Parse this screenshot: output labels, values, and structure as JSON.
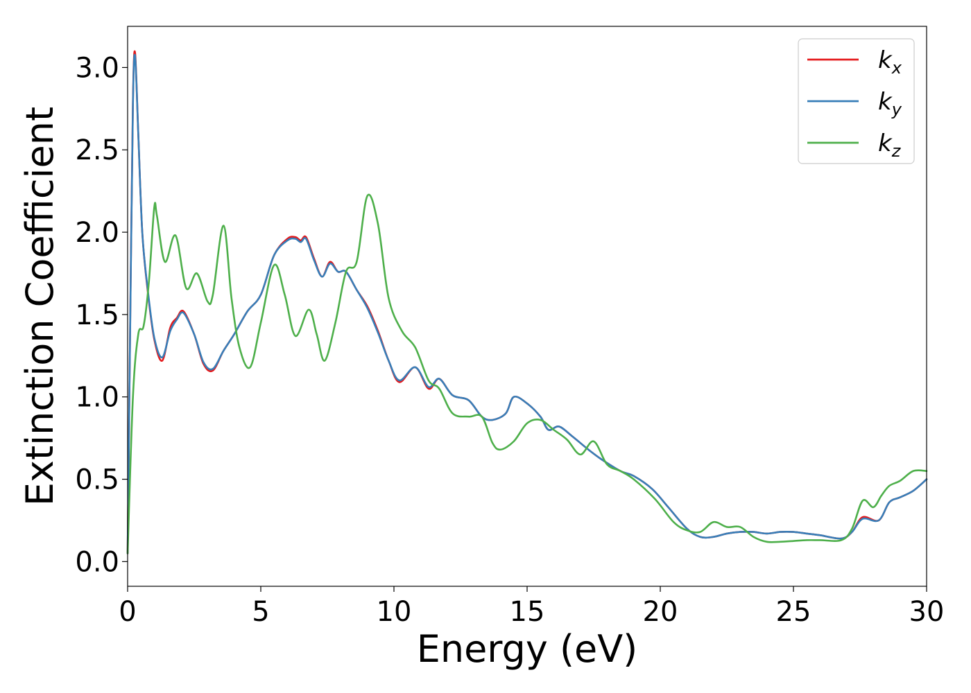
{
  "chart_data": {
    "type": "line",
    "title": "",
    "xlabel": "Energy (eV)",
    "ylabel": "Extinction Coefficient",
    "xlim": [
      0,
      30
    ],
    "ylim": [
      -0.15,
      3.25
    ],
    "xticks": [
      "0",
      "5",
      "10",
      "15",
      "20",
      "25",
      "30"
    ],
    "yticks": [
      "0.0",
      "0.5",
      "1.0",
      "1.5",
      "2.0",
      "2.5",
      "3.0"
    ],
    "grid": false,
    "legend_position": "top-right",
    "series": [
      {
        "name": "k",
        "subscript": "x",
        "color": "#e41a1c",
        "x": [
          0,
          0.1,
          0.2,
          0.28,
          0.4,
          0.55,
          0.75,
          1.0,
          1.3,
          1.6,
          1.85,
          2.1,
          2.5,
          2.85,
          3.2,
          3.6,
          4.0,
          4.5,
          5.0,
          5.5,
          6.0,
          6.3,
          6.5,
          6.7,
          7.0,
          7.3,
          7.6,
          7.9,
          8.2,
          8.6,
          9.0,
          9.4,
          9.8,
          10.2,
          10.8,
          11.3,
          11.7,
          12.2,
          12.8,
          13.3,
          13.7,
          14.2,
          14.5,
          15.0,
          15.5,
          15.8,
          16.2,
          16.7,
          17.3,
          17.8,
          18.5,
          19.0,
          19.7,
          20.3,
          21.0,
          21.5,
          22.0,
          22.5,
          23.0,
          23.5,
          24.0,
          24.5,
          25.0,
          25.5,
          26.0,
          26.8,
          27.2,
          27.6,
          28.2,
          28.6,
          29.0,
          29.5,
          30.0
        ],
        "y": [
          0.05,
          1.5,
          2.8,
          3.09,
          2.6,
          2.0,
          1.65,
          1.35,
          1.22,
          1.42,
          1.48,
          1.52,
          1.38,
          1.2,
          1.16,
          1.28,
          1.38,
          1.52,
          1.62,
          1.86,
          1.96,
          1.97,
          1.95,
          1.97,
          1.84,
          1.73,
          1.82,
          1.76,
          1.76,
          1.65,
          1.55,
          1.4,
          1.22,
          1.09,
          1.18,
          1.05,
          1.11,
          1.01,
          0.98,
          0.88,
          0.86,
          0.9,
          1.0,
          0.96,
          0.88,
          0.8,
          0.82,
          0.76,
          0.68,
          0.62,
          0.55,
          0.52,
          0.44,
          0.33,
          0.2,
          0.15,
          0.15,
          0.17,
          0.18,
          0.18,
          0.17,
          0.18,
          0.18,
          0.17,
          0.16,
          0.14,
          0.18,
          0.27,
          0.25,
          0.36,
          0.39,
          0.43,
          0.5
        ]
      },
      {
        "name": "k",
        "subscript": "y",
        "color": "#377eb8",
        "x": [
          0,
          0.1,
          0.2,
          0.28,
          0.4,
          0.55,
          0.75,
          1.0,
          1.3,
          1.6,
          1.85,
          2.1,
          2.5,
          2.85,
          3.2,
          3.6,
          4.0,
          4.5,
          5.0,
          5.5,
          6.0,
          6.3,
          6.5,
          6.7,
          7.0,
          7.3,
          7.6,
          7.9,
          8.2,
          8.6,
          9.0,
          9.4,
          9.8,
          10.2,
          10.8,
          11.3,
          11.7,
          12.2,
          12.8,
          13.3,
          13.7,
          14.2,
          14.5,
          15.0,
          15.5,
          15.8,
          16.2,
          16.7,
          17.3,
          17.8,
          18.5,
          19.0,
          19.7,
          20.3,
          21.0,
          21.5,
          22.0,
          22.5,
          23.0,
          23.5,
          24.0,
          24.5,
          25.0,
          25.5,
          26.0,
          26.8,
          27.2,
          27.6,
          28.2,
          28.6,
          29.0,
          29.5,
          30.0
        ],
        "y": [
          0.05,
          1.48,
          2.78,
          3.07,
          2.6,
          2.0,
          1.66,
          1.36,
          1.24,
          1.4,
          1.47,
          1.51,
          1.38,
          1.21,
          1.17,
          1.28,
          1.38,
          1.52,
          1.62,
          1.86,
          1.95,
          1.96,
          1.94,
          1.96,
          1.83,
          1.73,
          1.81,
          1.76,
          1.76,
          1.65,
          1.54,
          1.39,
          1.22,
          1.1,
          1.18,
          1.06,
          1.11,
          1.01,
          0.98,
          0.88,
          0.86,
          0.9,
          1.0,
          0.96,
          0.88,
          0.8,
          0.82,
          0.76,
          0.68,
          0.62,
          0.55,
          0.52,
          0.44,
          0.33,
          0.2,
          0.15,
          0.15,
          0.17,
          0.18,
          0.18,
          0.17,
          0.18,
          0.18,
          0.17,
          0.16,
          0.14,
          0.18,
          0.26,
          0.25,
          0.36,
          0.39,
          0.43,
          0.5
        ]
      },
      {
        "name": "k",
        "subscript": "z",
        "color": "#4daf4a",
        "x": [
          0,
          0.2,
          0.4,
          0.6,
          0.8,
          1.0,
          1.1,
          1.4,
          1.8,
          2.2,
          2.6,
          3.0,
          3.2,
          3.6,
          3.9,
          4.2,
          4.6,
          5.0,
          5.5,
          5.9,
          6.3,
          6.8,
          7.1,
          7.4,
          7.8,
          8.2,
          8.6,
          9.0,
          9.4,
          9.8,
          10.3,
          10.8,
          11.3,
          11.7,
          12.2,
          12.8,
          13.3,
          13.7,
          14.0,
          14.5,
          15.0,
          15.5,
          16.0,
          16.5,
          17.0,
          17.5,
          18.0,
          18.5,
          19.0,
          19.8,
          20.5,
          21.0,
          21.5,
          22.0,
          22.5,
          23.0,
          23.5,
          24.0,
          24.5,
          25.0,
          25.5,
          26.0,
          26.8,
          27.2,
          27.6,
          28.0,
          28.3,
          28.6,
          29.0,
          29.5,
          30.0
        ],
        "y": [
          0.05,
          1.0,
          1.38,
          1.43,
          1.7,
          2.15,
          2.1,
          1.82,
          1.98,
          1.66,
          1.75,
          1.58,
          1.62,
          2.04,
          1.6,
          1.3,
          1.18,
          1.45,
          1.8,
          1.62,
          1.37,
          1.53,
          1.38,
          1.22,
          1.45,
          1.76,
          1.82,
          2.22,
          2.05,
          1.6,
          1.4,
          1.3,
          1.1,
          1.05,
          0.9,
          0.88,
          0.88,
          0.72,
          0.68,
          0.73,
          0.84,
          0.86,
          0.8,
          0.74,
          0.65,
          0.73,
          0.59,
          0.55,
          0.5,
          0.38,
          0.24,
          0.19,
          0.18,
          0.24,
          0.21,
          0.21,
          0.15,
          0.12,
          0.12,
          0.125,
          0.13,
          0.13,
          0.13,
          0.2,
          0.37,
          0.33,
          0.4,
          0.46,
          0.49,
          0.55,
          0.55
        ]
      }
    ]
  }
}
